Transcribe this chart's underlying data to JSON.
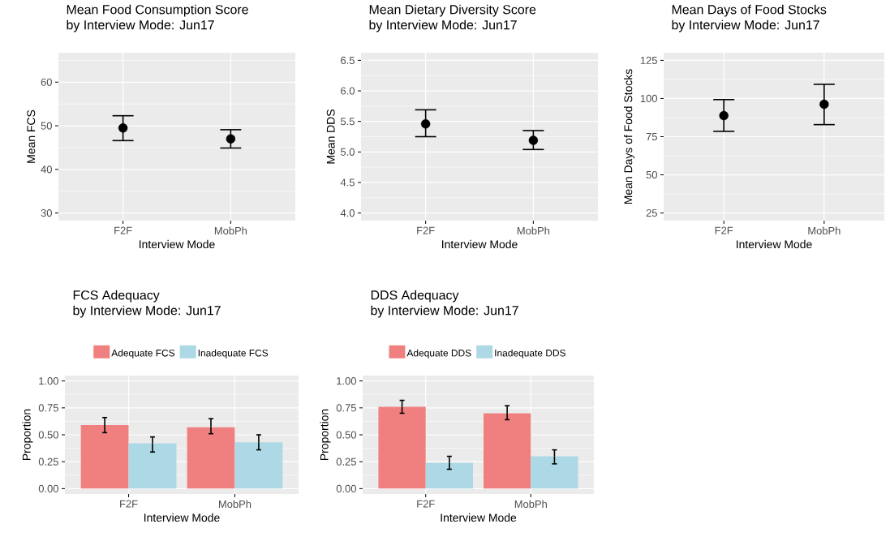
{
  "chart_data": [
    {
      "type": "scatter",
      "title": "Mean Food Consumption Score",
      "subtitle": "by Interview Mode: Jun17",
      "xlabel": "Interview Mode",
      "ylabel": "Mean FCS",
      "categories": [
        "F2F",
        "MobPh"
      ],
      "values": [
        49.5,
        47.0
      ],
      "errors": [
        [
          46.6,
          52.3
        ],
        [
          44.9,
          49.1
        ]
      ],
      "color": "#000000",
      "marker": "circle",
      "ylim": [
        28.25,
        66.75
      ],
      "yticks": [
        30,
        40,
        50,
        60
      ],
      "grid": true
    },
    {
      "type": "scatter",
      "title": "Mean Dietary Diversity Score",
      "subtitle": "by Interview Mode: Jun17",
      "xlabel": "Interview Mode",
      "ylabel": "Mean DDS",
      "categories": [
        "F2F",
        "MobPh"
      ],
      "values": [
        5.46,
        5.19
      ],
      "errors": [
        [
          5.25,
          5.69
        ],
        [
          5.04,
          5.35
        ]
      ],
      "color": "#000000",
      "marker": "circle",
      "ylim": [
        3.875,
        6.625
      ],
      "yticks": [
        {
          "value": 4,
          "label": "4.0"
        },
        4.5,
        {
          "value": 5,
          "label": "5.0"
        },
        5.5,
        {
          "value": 6,
          "label": "6.0"
        },
        6.5
      ],
      "grid": true
    },
    {
      "type": "scatter",
      "title": "Mean Days of Food Stocks",
      "subtitle": "by Interview Mode: Jun17",
      "xlabel": "Interview Mode",
      "ylabel": "Mean Days of Food Stocks",
      "categories": [
        "F2F",
        "MobPh"
      ],
      "values": [
        88.8,
        96.2
      ],
      "errors": [
        [
          78.5,
          99.3
        ],
        [
          82.9,
          109.3
        ]
      ],
      "color": "#000000",
      "marker": "circle",
      "ylim": [
        20,
        130
      ],
      "yticks": [
        25,
        50,
        75,
        100,
        125
      ],
      "grid": true
    },
    {
      "type": "bar",
      "title": "FCS Adequacy",
      "subtitle": "by Interview Mode: Jun17",
      "xlabel": "Interview Mode",
      "ylabel": "Proportion",
      "categories": [
        "F2F",
        "MobPh"
      ],
      "series": [
        {
          "name": "Adequate FCS",
          "color": "#f08080",
          "values": [
            0.59,
            0.57
          ],
          "errors": [
            [
              0.52,
              0.66
            ],
            [
              0.51,
              0.65
            ]
          ]
        },
        {
          "name": "Inadequate FCS",
          "color": "#add8e6",
          "values": [
            0.42,
            0.43
          ],
          "errors": [
            [
              0.34,
              0.48
            ],
            [
              0.36,
              0.5
            ]
          ]
        }
      ],
      "ylim": [
        -0.05,
        1.05
      ],
      "yticks": [
        {
          "value": 0,
          "label": "0.00"
        },
        {
          "value": 0.25,
          "label": "0.25"
        },
        {
          "value": 0.5,
          "label": "0.50"
        },
        {
          "value": 0.75,
          "label": "0.75"
        },
        {
          "value": 1,
          "label": "1.00"
        }
      ],
      "grid": true,
      "legend": "top"
    },
    {
      "type": "bar",
      "title": "DDS Adequacy",
      "subtitle": "by Interview Mode: Jun17",
      "xlabel": "Interview Mode",
      "ylabel": "Proportion",
      "categories": [
        "F2F",
        "MobPh"
      ],
      "series": [
        {
          "name": "Adequate DDS",
          "color": "#f08080",
          "values": [
            0.76,
            0.7
          ],
          "errors": [
            [
              0.7,
              0.82
            ],
            [
              0.64,
              0.77
            ]
          ]
        },
        {
          "name": "Inadequate DDS",
          "color": "#add8e6",
          "values": [
            0.24,
            0.3
          ],
          "errors": [
            [
              0.18,
              0.3
            ],
            [
              0.23,
              0.36
            ]
          ]
        }
      ],
      "ylim": [
        -0.05,
        1.05
      ],
      "yticks": [
        {
          "value": 0,
          "label": "0.00"
        },
        {
          "value": 0.25,
          "label": "0.25"
        },
        {
          "value": 0.5,
          "label": "0.50"
        },
        {
          "value": 0.75,
          "label": "0.75"
        },
        {
          "value": 1,
          "label": "1.00"
        }
      ],
      "grid": true,
      "legend": "top"
    }
  ]
}
